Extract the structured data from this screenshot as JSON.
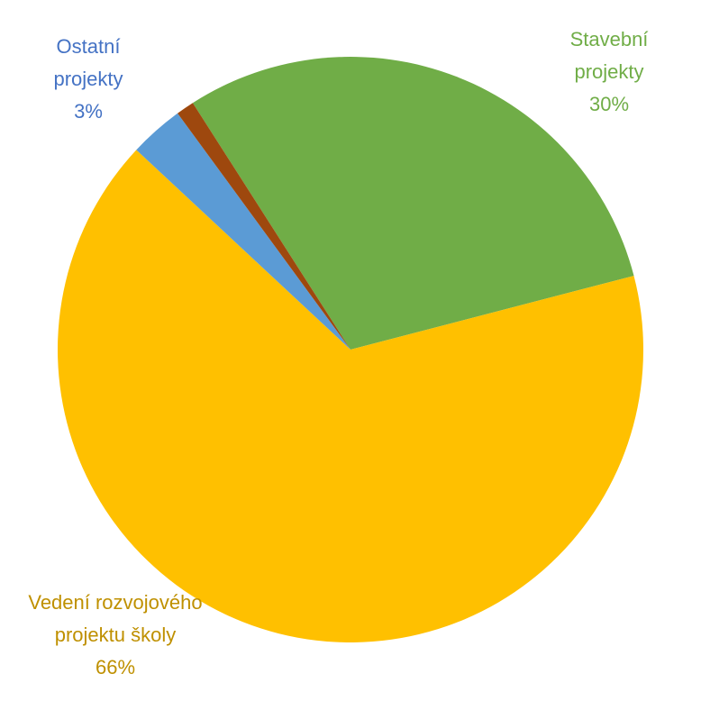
{
  "chart_data": {
    "type": "pie",
    "categories": [
      "Stavební projekty",
      "Vedení rozvojového projektu školy",
      "Ostatní projekty",
      null
    ],
    "values": [
      30,
      66,
      3,
      1
    ],
    "value_labels": [
      "30%",
      "66%",
      "3%",
      null
    ],
    "colors": [
      "#70ad47",
      "#ffc000",
      "#5b9bd5",
      "#9e480e"
    ],
    "label_colors": [
      "#70ad47",
      "#bf9000",
      "#4472c4",
      null
    ]
  }
}
